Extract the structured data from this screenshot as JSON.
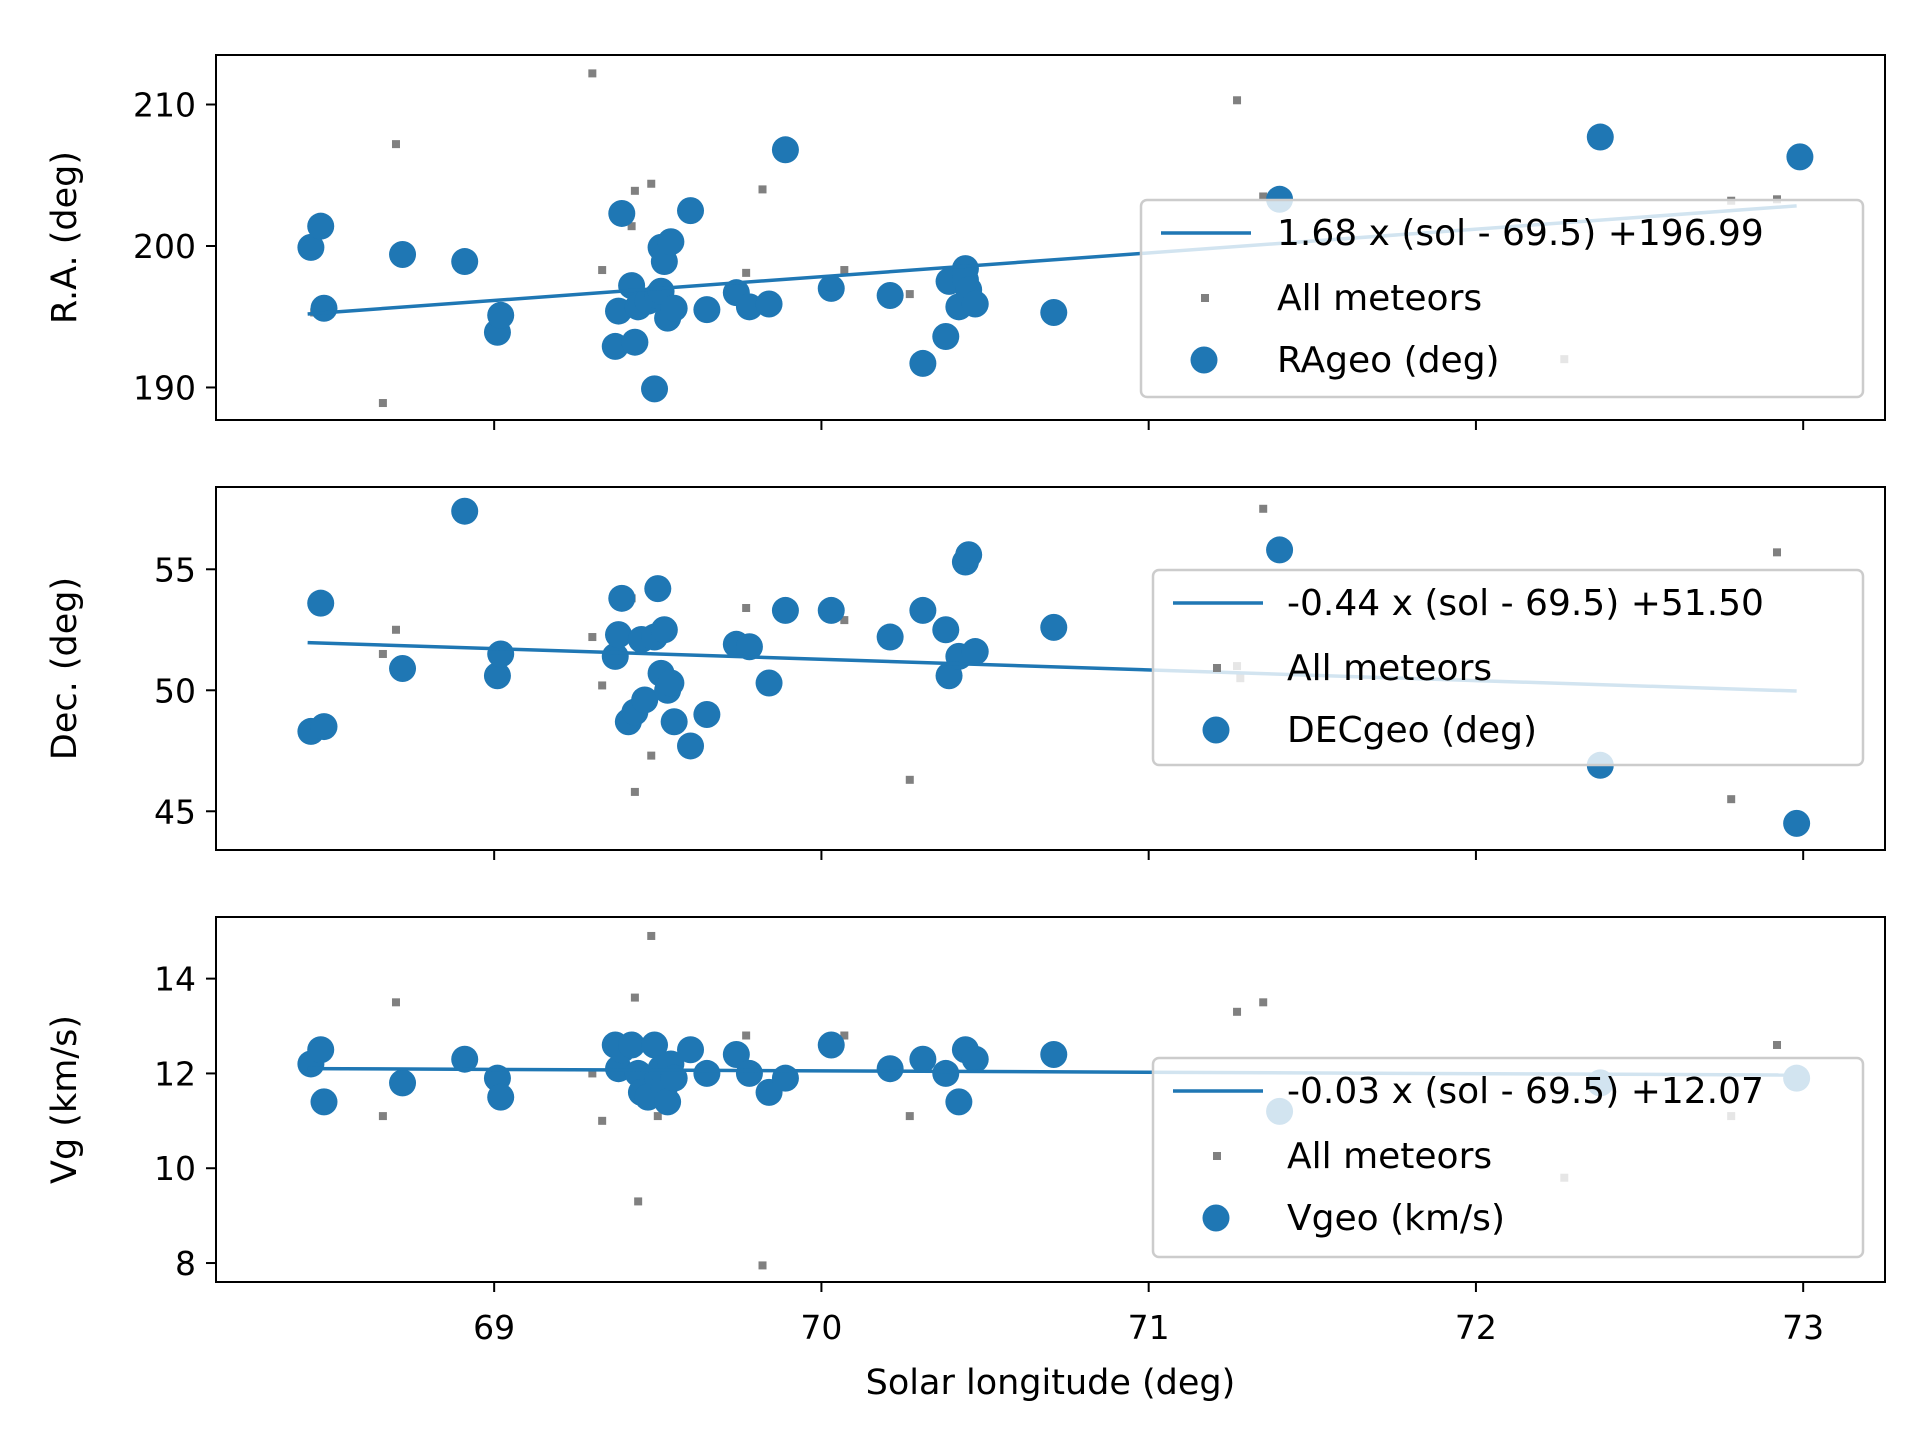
{
  "chart_data": {
    "type": "scatter",
    "shared_x": {
      "label": "Solar longitude (deg)",
      "range": [
        68.15,
        73.25
      ],
      "ticks": [
        69,
        70,
        71,
        72,
        73
      ],
      "tick_labels": [
        "69",
        "70",
        "71",
        "72",
        "73"
      ]
    },
    "colors": {
      "primary": "#1f77b4",
      "all_meteors": "#808080"
    },
    "legend_placement": "right",
    "panels": [
      {
        "id": "ra",
        "ylabel": "R.A. (deg)",
        "ylim": [
          187.7,
          213.5
        ],
        "yticks": [
          190,
          200,
          210
        ],
        "ytick_labels": [
          "190",
          "200",
          "210"
        ],
        "legend": {
          "fit": "1.68 x (sol - 69.5) +196.99",
          "all": "All meteors",
          "series": "RAgeo (deg)"
        },
        "fit": {
          "slope": 1.68,
          "x0": 69.5,
          "intercept": 196.99,
          "x_range": [
            68.43,
            72.98
          ]
        },
        "all_meteors": [
          [
            68.66,
            188.9
          ],
          [
            68.7,
            207.2
          ],
          [
            69.3,
            212.2
          ],
          [
            69.33,
            198.3
          ],
          [
            69.43,
            203.9
          ],
          [
            69.48,
            204.4
          ],
          [
            69.42,
            201.4
          ],
          [
            69.82,
            204.0
          ],
          [
            69.77,
            198.1
          ],
          [
            70.07,
            198.3
          ],
          [
            70.27,
            196.6
          ],
          [
            71.27,
            210.3
          ],
          [
            71.35,
            203.5
          ],
          [
            72.27,
            192.0
          ],
          [
            72.78,
            203.2
          ],
          [
            72.92,
            203.3
          ],
          [
            68.45,
            195.3
          ]
        ],
        "series": [
          [
            68.44,
            199.9
          ],
          [
            68.47,
            201.4
          ],
          [
            68.48,
            195.6
          ],
          [
            68.72,
            199.4
          ],
          [
            68.91,
            198.9
          ],
          [
            69.01,
            193.9
          ],
          [
            69.02,
            195.1
          ],
          [
            69.37,
            192.9
          ],
          [
            69.38,
            195.4
          ],
          [
            69.39,
            202.3
          ],
          [
            69.42,
            197.2
          ],
          [
            69.43,
            193.2
          ],
          [
            69.44,
            195.7
          ],
          [
            69.47,
            196.1
          ],
          [
            69.49,
            189.9
          ],
          [
            69.5,
            196.5
          ],
          [
            69.51,
            196.8
          ],
          [
            69.51,
            199.9
          ],
          [
            69.52,
            198.9
          ],
          [
            69.53,
            194.9
          ],
          [
            69.54,
            200.3
          ],
          [
            69.55,
            195.6
          ],
          [
            69.6,
            202.5
          ],
          [
            69.65,
            195.5
          ],
          [
            69.74,
            196.7
          ],
          [
            69.78,
            195.7
          ],
          [
            69.84,
            195.9
          ],
          [
            69.89,
            206.8
          ],
          [
            70.03,
            197.0
          ],
          [
            70.21,
            196.5
          ],
          [
            70.31,
            191.7
          ],
          [
            70.38,
            193.6
          ],
          [
            70.39,
            197.5
          ],
          [
            70.42,
            195.7
          ],
          [
            70.44,
            197.6
          ],
          [
            70.44,
            198.4
          ],
          [
            70.45,
            196.9
          ],
          [
            70.47,
            195.9
          ],
          [
            70.71,
            195.3
          ],
          [
            71.4,
            203.3
          ],
          [
            72.38,
            207.7
          ],
          [
            72.99,
            206.3
          ]
        ]
      },
      {
        "id": "dec",
        "ylabel": "Dec. (deg)",
        "ylim": [
          43.4,
          58.4
        ],
        "yticks": [
          45,
          50,
          55
        ],
        "ytick_labels": [
          "45",
          "50",
          "55"
        ],
        "legend": {
          "fit": "-0.44 x (sol - 69.5) +51.50",
          "all": "All meteors",
          "series": "DECgeo (deg)"
        },
        "fit": {
          "slope": -0.44,
          "x0": 69.5,
          "intercept": 51.5,
          "x_range": [
            68.43,
            72.98
          ]
        },
        "all_meteors": [
          [
            68.7,
            52.5
          ],
          [
            68.66,
            51.5
          ],
          [
            69.3,
            52.2
          ],
          [
            69.33,
            50.2
          ],
          [
            69.43,
            45.8
          ],
          [
            69.48,
            47.3
          ],
          [
            69.42,
            53.8
          ],
          [
            69.77,
            53.4
          ],
          [
            70.07,
            52.9
          ],
          [
            70.27,
            46.3
          ],
          [
            71.27,
            51.0
          ],
          [
            71.28,
            50.5
          ],
          [
            71.35,
            57.5
          ],
          [
            72.78,
            45.5
          ],
          [
            72.92,
            55.7
          ]
        ],
        "series": [
          [
            68.44,
            48.3
          ],
          [
            68.47,
            53.6
          ],
          [
            68.48,
            48.5
          ],
          [
            68.72,
            50.9
          ],
          [
            68.91,
            57.4
          ],
          [
            69.01,
            50.6
          ],
          [
            69.02,
            51.5
          ],
          [
            69.37,
            51.4
          ],
          [
            69.38,
            52.3
          ],
          [
            69.39,
            53.8
          ],
          [
            69.41,
            48.7
          ],
          [
            69.43,
            49.1
          ],
          [
            69.45,
            52.1
          ],
          [
            69.46,
            49.6
          ],
          [
            69.49,
            52.2
          ],
          [
            69.5,
            54.2
          ],
          [
            69.51,
            50.7
          ],
          [
            69.52,
            52.5
          ],
          [
            69.53,
            50.0
          ],
          [
            69.54,
            50.3
          ],
          [
            69.55,
            48.7
          ],
          [
            69.6,
            47.7
          ],
          [
            69.65,
            49.0
          ],
          [
            69.74,
            51.9
          ],
          [
            69.78,
            51.8
          ],
          [
            69.84,
            50.3
          ],
          [
            69.89,
            53.3
          ],
          [
            70.03,
            53.3
          ],
          [
            70.21,
            52.2
          ],
          [
            70.31,
            53.3
          ],
          [
            70.38,
            52.5
          ],
          [
            70.39,
            50.6
          ],
          [
            70.42,
            51.4
          ],
          [
            70.44,
            55.3
          ],
          [
            70.45,
            55.6
          ],
          [
            70.47,
            51.6
          ],
          [
            70.71,
            52.6
          ],
          [
            71.4,
            55.8
          ],
          [
            72.38,
            46.9
          ],
          [
            72.98,
            44.5
          ]
        ]
      },
      {
        "id": "vg",
        "ylabel": "Vg (km/s)",
        "ylim": [
          7.6,
          15.3
        ],
        "yticks": [
          8,
          10,
          12,
          14
        ],
        "ytick_labels": [
          "8",
          "10",
          "12",
          "14"
        ],
        "legend": {
          "fit": "-0.03 x (sol - 69.5) +12.07",
          "all": "All meteors",
          "series": "Vgeo (km/s)"
        },
        "fit": {
          "slope": -0.03,
          "x0": 69.5,
          "intercept": 12.07,
          "x_range": [
            68.43,
            72.98
          ]
        },
        "all_meteors": [
          [
            68.7,
            13.5
          ],
          [
            68.66,
            11.1
          ],
          [
            69.3,
            12.0
          ],
          [
            69.33,
            11.0
          ],
          [
            69.43,
            13.6
          ],
          [
            69.44,
            9.3
          ],
          [
            69.48,
            14.9
          ],
          [
            69.5,
            11.1
          ],
          [
            69.77,
            12.8
          ],
          [
            70.07,
            12.8
          ],
          [
            70.27,
            11.1
          ],
          [
            69.82,
            7.95
          ],
          [
            71.27,
            13.3
          ],
          [
            71.35,
            13.5
          ],
          [
            72.27,
            9.8
          ],
          [
            72.78,
            11.1
          ],
          [
            72.92,
            12.6
          ]
        ],
        "series": [
          [
            68.44,
            12.2
          ],
          [
            68.47,
            12.5
          ],
          [
            68.48,
            11.4
          ],
          [
            68.72,
            11.8
          ],
          [
            68.91,
            12.3
          ],
          [
            69.01,
            11.9
          ],
          [
            69.02,
            11.5
          ],
          [
            69.37,
            12.6
          ],
          [
            69.38,
            12.1
          ],
          [
            69.39,
            12.5
          ],
          [
            69.42,
            12.6
          ],
          [
            69.44,
            12.0
          ],
          [
            69.45,
            11.6
          ],
          [
            69.47,
            11.5
          ],
          [
            69.49,
            12.6
          ],
          [
            69.5,
            11.9
          ],
          [
            69.51,
            12.1
          ],
          [
            69.52,
            11.7
          ],
          [
            69.53,
            11.4
          ],
          [
            69.54,
            12.2
          ],
          [
            69.55,
            11.9
          ],
          [
            69.6,
            12.5
          ],
          [
            69.65,
            12.0
          ],
          [
            69.74,
            12.4
          ],
          [
            69.78,
            12.0
          ],
          [
            69.84,
            11.6
          ],
          [
            69.89,
            11.9
          ],
          [
            70.03,
            12.6
          ],
          [
            70.21,
            12.1
          ],
          [
            70.31,
            12.3
          ],
          [
            70.38,
            12.0
          ],
          [
            70.42,
            11.4
          ],
          [
            70.44,
            12.5
          ],
          [
            70.47,
            12.3
          ],
          [
            70.71,
            12.4
          ],
          [
            71.4,
            11.2
          ],
          [
            72.38,
            11.8
          ],
          [
            72.98,
            11.9
          ]
        ]
      }
    ]
  }
}
